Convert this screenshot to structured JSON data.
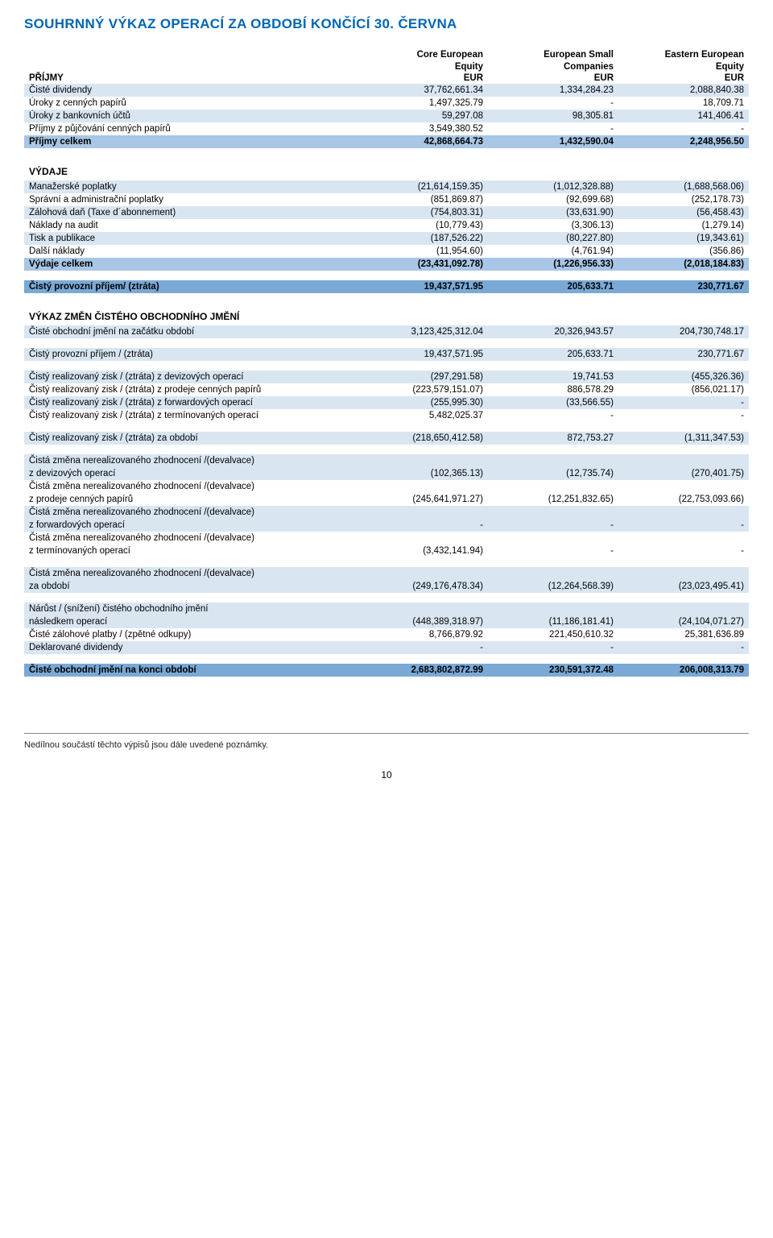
{
  "page_title": "SOUHRNNÝ VÝKAZ OPERACÍ ZA OBDOBÍ KONČÍCÍ 30. ČERVNA",
  "columns": [
    {
      "l1": "Core European",
      "l2": "Equity",
      "l3": "EUR"
    },
    {
      "l1": "European Small",
      "l2": "Companies",
      "l3": "EUR"
    },
    {
      "l1": "Eastern European",
      "l2": "Equity",
      "l3": "EUR"
    }
  ],
  "sections": {
    "prijmy_head": "PŘÍJMY",
    "vydaje_head": "VÝDAJE",
    "vykaz_head": "VÝKAZ ZMĚN ČISTÉHO OBCHODNÍHO JMĚNÍ"
  },
  "rows": [
    {
      "k": "ciste_div",
      "band": "light",
      "label": "Čisté dividendy",
      "v": [
        "37,762,661.34",
        "1,334,284.23",
        "2,088,840.38"
      ]
    },
    {
      "k": "uroky_cp",
      "band": "none",
      "label": "Úroky z cenných papírů",
      "v": [
        "1,497,325.79",
        "-",
        "18,709.71"
      ]
    },
    {
      "k": "uroky_bank",
      "band": "light",
      "label": "Úroky z bankovních účtů",
      "v": [
        "59,297.08",
        "98,305.81",
        "141,406.41"
      ]
    },
    {
      "k": "prijmy_pujc",
      "band": "none",
      "label": "Příjmy z půjčování cenných papírů",
      "v": [
        "3,549,380.52",
        "-",
        "-"
      ]
    },
    {
      "k": "prijmy_celkem",
      "band": "med",
      "bold": true,
      "label": "Příjmy celkem",
      "v": [
        "42,868,664.73",
        "1,432,590.04",
        "2,248,956.50"
      ]
    },
    {
      "k": "man_pop",
      "band": "light",
      "label": "Manažerské poplatky",
      "v": [
        "(21,614,159.35)",
        "(1,012,328.88)",
        "(1,688,568.06)"
      ]
    },
    {
      "k": "spravni",
      "band": "none",
      "label": "Správní a administrační poplatky",
      "v": [
        "(851,869.87)",
        "(92,699.68)",
        "(252,178.73)"
      ]
    },
    {
      "k": "zalohova",
      "band": "light",
      "label": "Zálohová daň (Taxe d´abonnement)",
      "v": [
        "(754,803.31)",
        "(33,631.90)",
        "(56,458.43)"
      ]
    },
    {
      "k": "naklady_audit",
      "band": "none",
      "label": "Náklady na audit",
      "v": [
        "(10,779.43)",
        "(3,306.13)",
        "(1,279.14)"
      ]
    },
    {
      "k": "tisk",
      "band": "light",
      "label": "Tisk a publikace",
      "v": [
        "(187,526.22)",
        "(80,227.80)",
        "(19,343.61)"
      ]
    },
    {
      "k": "dalsi",
      "band": "none",
      "label": "Další náklady",
      "v": [
        "(11,954.60)",
        "(4,761.94)",
        "(356.86)"
      ]
    },
    {
      "k": "vydaje_celkem",
      "band": "med",
      "bold": true,
      "label": "Výdaje celkem",
      "v": [
        "(23,431,092.78)",
        "(1,226,956.33)",
        "(2,018,184.83)"
      ]
    },
    {
      "k": "cisty_provozni",
      "band": "dark",
      "bold": true,
      "label": "Čistý provozní příjem/ (ztráta)",
      "v": [
        "19,437,571.95",
        "205,633.71",
        "230,771.67"
      ]
    },
    {
      "k": "coj_zacatek",
      "band": "light",
      "label": "Čisté obchodní jmění na začátku období",
      "v": [
        "3,123,425,312.04",
        "20,326,943.57",
        "204,730,748.17"
      ]
    },
    {
      "k": "cpp2",
      "band": "light",
      "label": "Čistý provozní příjem / (ztráta)",
      "v": [
        "19,437,571.95",
        "205,633.71",
        "230,771.67"
      ]
    },
    {
      "k": "crz_dev",
      "band": "light",
      "label": "Čistý realizovaný zisk / (ztráta) z devizových operací",
      "v": [
        "(297,291.58)",
        "19,741.53",
        "(455,326.36)"
      ]
    },
    {
      "k": "crz_prod",
      "band": "none",
      "label": "Čistý realizovaný zisk / (ztráta) z prodeje cenných papírů",
      "v": [
        "(223,579,151.07)",
        "886,578.29",
        "(856,021.17)"
      ]
    },
    {
      "k": "crz_fwd",
      "band": "light",
      "label": "Čistý realizovaný zisk / (ztráta) z forwardových operací",
      "v": [
        "(255,995.30)",
        "(33,566.55)",
        "-"
      ]
    },
    {
      "k": "crz_term",
      "band": "none",
      "label": "Čistý realizovaný zisk / (ztráta) z termínovaných operací",
      "v": [
        "5,482,025.37",
        "-",
        "-"
      ]
    },
    {
      "k": "crz_celk",
      "band": "light",
      "label": "Čistý realizovaný zisk / (ztráta) za období",
      "v": [
        "(218,650,412.58)",
        "872,753.27",
        "(1,311,347.53)"
      ]
    },
    {
      "k": "czn_dev_l1",
      "band": "light",
      "label": "Čistá změna nerealizovaného zhodnocení /(devalvace)",
      "v": [
        "",
        "",
        ""
      ]
    },
    {
      "k": "czn_dev_l2",
      "band": "light",
      "label": "z devizových operací",
      "v": [
        "(102,365.13)",
        "(12,735.74)",
        "(270,401.75)"
      ]
    },
    {
      "k": "czn_prod_l1",
      "band": "none",
      "label": "Čistá změna nerealizovaného zhodnocení /(devalvace)",
      "v": [
        "",
        "",
        ""
      ]
    },
    {
      "k": "czn_prod_l2",
      "band": "none",
      "label": "z prodeje cenných papírů",
      "v": [
        "(245,641,971.27)",
        "(12,251,832.65)",
        "(22,753,093.66)"
      ]
    },
    {
      "k": "czn_fwd_l1",
      "band": "light",
      "label": "Čistá změna nerealizovaného zhodnocení /(devalvace)",
      "v": [
        "",
        "",
        ""
      ]
    },
    {
      "k": "czn_fwd_l2",
      "band": "light",
      "label": "z forwardových operací",
      "v": [
        "-",
        "-",
        "-"
      ]
    },
    {
      "k": "czn_term_l1",
      "band": "none",
      "label": "Čistá změna nerealizovaného zhodnocení /(devalvace)",
      "v": [
        "",
        "",
        ""
      ]
    },
    {
      "k": "czn_term_l2",
      "band": "none",
      "label": "z termínovaných operací",
      "v": [
        "(3,432,141.94)",
        "-",
        "-"
      ]
    },
    {
      "k": "czn_celk_l1",
      "band": "light",
      "label": "Čistá změna nerealizovaného zhodnocení /(devalvace)",
      "v": [
        "",
        "",
        ""
      ]
    },
    {
      "k": "czn_celk_l2",
      "band": "light",
      "label": "za období",
      "v": [
        "(249,176,478.34)",
        "(12,264,568.39)",
        "(23,023,495.41)"
      ]
    },
    {
      "k": "narust_l1",
      "band": "light",
      "label": "Nárůst / (snížení) čistého obchodního jmění",
      "v": [
        "",
        "",
        ""
      ]
    },
    {
      "k": "narust_l2",
      "band": "light",
      "label": "následkem operací",
      "v": [
        "(448,389,318.97)",
        "(11,186,181.41)",
        "(24,104,071.27)"
      ]
    },
    {
      "k": "ciste_zal",
      "band": "none",
      "label": "Čisté zálohové platby / (zpětné odkupy)",
      "v": [
        "8,766,879.92",
        "221,450,610.32",
        "25,381,636.89"
      ]
    },
    {
      "k": "dekl_div",
      "band": "light",
      "label": "Deklarované dividendy",
      "v": [
        "-",
        "-",
        "-"
      ]
    },
    {
      "k": "coj_konec",
      "band": "dark",
      "bold": true,
      "label": "Čisté obchodní jmění na konci období",
      "v": [
        "2,683,802,872.99",
        "230,591,372.48",
        "206,008,313.79"
      ]
    }
  ],
  "footnote": "Nedílnou součástí těchto výpisů jsou dále uvedené poznámky.",
  "page_number": "10"
}
